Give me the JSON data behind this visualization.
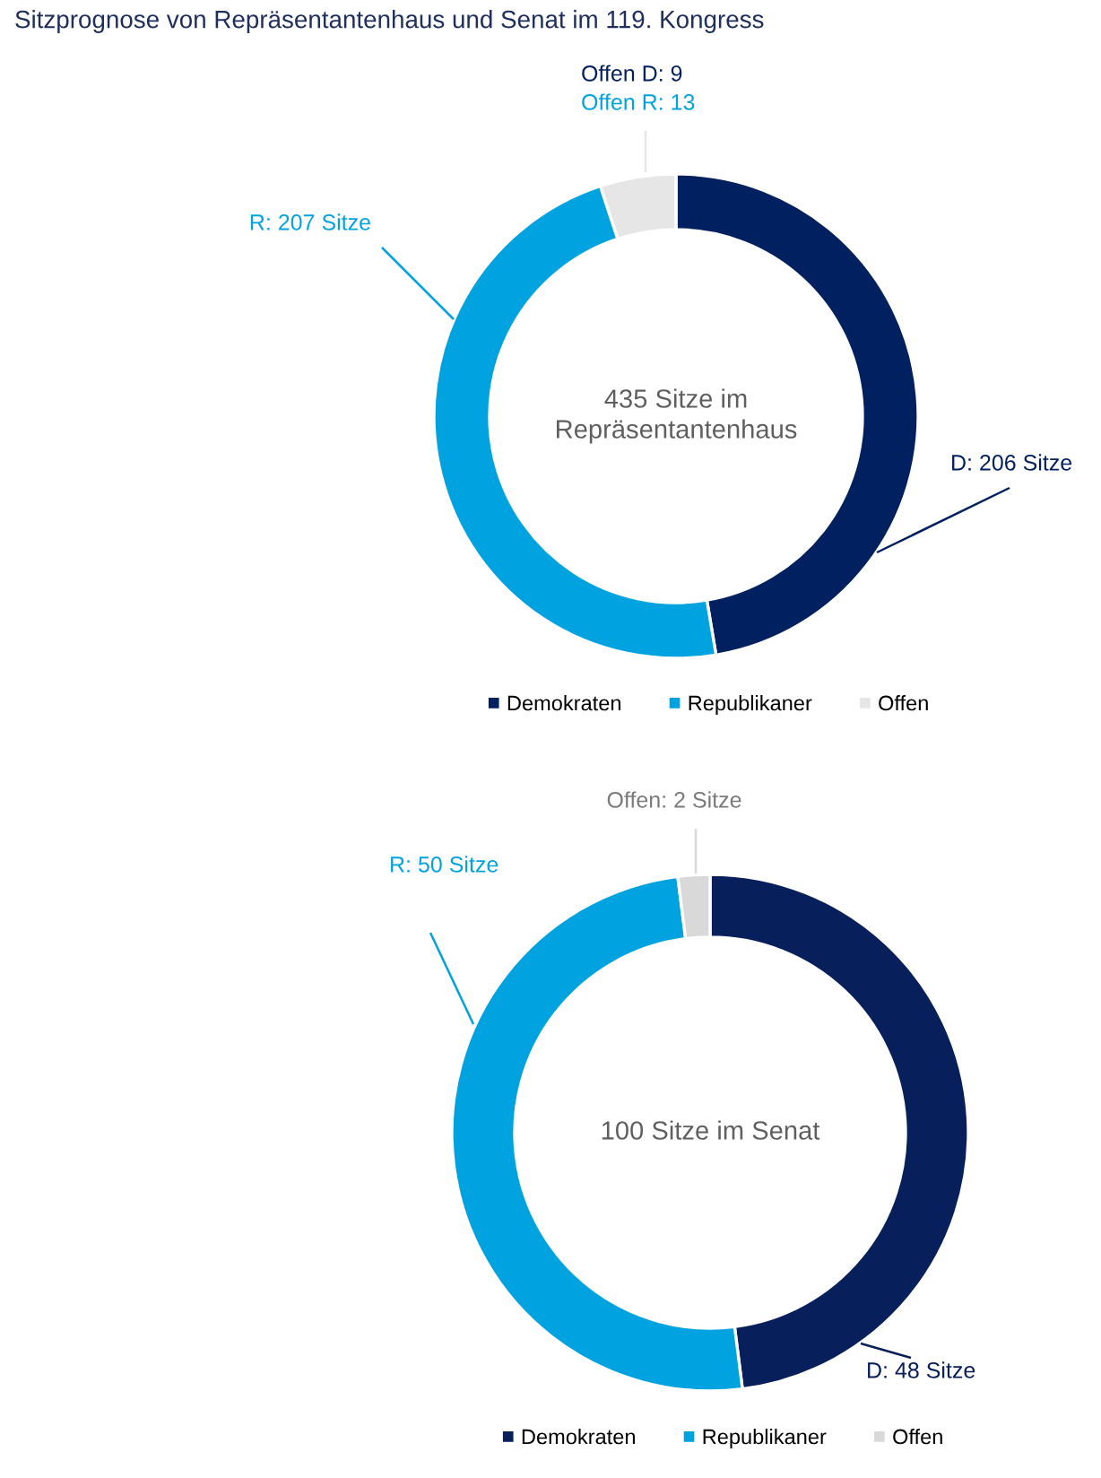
{
  "chart_data": [
    {
      "type": "donut",
      "title": "Sitzprognose von Repräsentantenhaus und Senat im 119. Kongress",
      "categories": [
        "Demokraten",
        "Republikaner",
        "Offen"
      ],
      "values": [
        206,
        207,
        22
      ],
      "colors": [
        "#002060",
        "#00a3e0",
        "#e6e6e6"
      ],
      "value_labels": [
        "D: 206 Sitze",
        "R: 207 Sitze",
        "Offen D: 9\nOffen R: 13"
      ],
      "annotations": [
        "435 Sitze im\nRepräsentantenhaus"
      ],
      "legend": "bottom"
    },
    {
      "type": "donut",
      "categories": [
        "Demokraten",
        "Republikaner",
        "Offen"
      ],
      "values": [
        48,
        50,
        2
      ],
      "colors": [
        "#071f5a",
        "#00a3e0",
        "#d9d9d9"
      ],
      "value_labels": [
        "D: 48 Sitze",
        "R: 50 Sitze",
        "Offen: 2 Sitze"
      ],
      "annotations": [
        "100 Sitze im Senat"
      ],
      "legend": "bottom"
    }
  ]
}
